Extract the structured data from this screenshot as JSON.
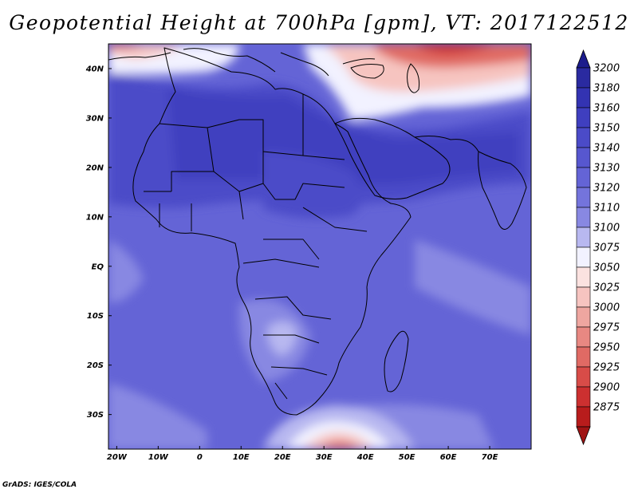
{
  "title": "Geopotential Height at 700hPa [gpm], VT: 2017122512",
  "credit": "GrADS: IGES/COLA",
  "axes": {
    "lat_labels": [
      "40N",
      "30N",
      "20N",
      "10N",
      "EQ",
      "10S",
      "20S",
      "30S"
    ],
    "lat_values": [
      40,
      30,
      20,
      10,
      0,
      -10,
      -20,
      -30
    ],
    "lon_labels": [
      "20W",
      "10W",
      "0",
      "10E",
      "20E",
      "30E",
      "40E",
      "50E",
      "60E",
      "70E"
    ],
    "lon_values": [
      -20,
      -10,
      0,
      10,
      20,
      30,
      40,
      50,
      60,
      70
    ],
    "lon_range": [
      -22,
      80
    ],
    "lat_range": [
      -37,
      45
    ]
  },
  "colorbar": {
    "labels": [
      "3200",
      "3180",
      "3160",
      "3150",
      "3140",
      "3130",
      "3120",
      "3110",
      "3100",
      "3075",
      "3050",
      "3025",
      "3000",
      "2975",
      "2950",
      "2925",
      "2900",
      "2875"
    ],
    "colors": [
      "#2a2aa0",
      "#3333b2",
      "#3f3fbf",
      "#4b4bc8",
      "#5757cf",
      "#6464d6",
      "#7474dc",
      "#8888e2",
      "#b8b8f0",
      "#f2f2ff",
      "#fbe2e0",
      "#f6c4c0",
      "#eea6a0",
      "#e88882",
      "#e06a64",
      "#d84c48",
      "#cc3030",
      "#b81c1c"
    ],
    "top_arrow_color": "#1c1c8c",
    "bottom_arrow_color": "#a01414"
  },
  "field_colors": {
    "background": "#6464d6",
    "deep": "#4b4bc8",
    "deeper": "#3f3fbf",
    "light": "#8888e2",
    "lighter": "#b8b8f0",
    "pale": "#f2f2ff",
    "pink": "#f6c4c0",
    "red": "#e06a64",
    "darkred": "#cc3030"
  }
}
